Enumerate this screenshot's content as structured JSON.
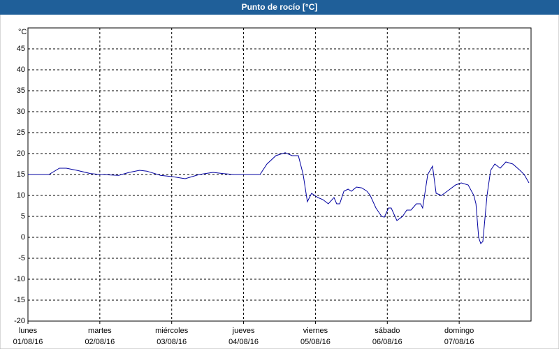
{
  "chart_data": {
    "type": "line",
    "title": "Punto de rocío [°C]",
    "y_unit": "°C",
    "xlim": [
      0,
      168
    ],
    "xticks": [
      {
        "value": 0,
        "label": [
          "lunes",
          "01/08/16"
        ]
      },
      {
        "value": 24,
        "label": [
          "martes",
          "02/08/16"
        ]
      },
      {
        "value": 48,
        "label": [
          "miércoles",
          "03/08/16"
        ]
      },
      {
        "value": 72,
        "label": [
          "jueves",
          "04/08/16"
        ]
      },
      {
        "value": 96,
        "label": [
          "viernes",
          "05/08/16"
        ]
      },
      {
        "value": 120,
        "label": [
          "sábado",
          "06/08/16"
        ]
      },
      {
        "value": 144,
        "label": [
          "domingo",
          "07/08/16"
        ]
      }
    ],
    "ylim": [
      -20,
      50
    ],
    "yticks": [
      -20,
      -15,
      -10,
      -5,
      0,
      5,
      10,
      15,
      20,
      25,
      30,
      35,
      40,
      45
    ],
    "grid": true,
    "x": [
      0,
      7,
      10.5,
      12.8,
      16.3,
      21,
      24.3,
      30.3,
      33.8,
      37.3,
      39.7,
      44.3,
      48.1,
      52.5,
      57.2,
      61.8,
      65.3,
      68.8,
      72.1,
      77.5,
      79.8,
      82.8,
      85.9,
      88.2,
      90.3,
      91.9,
      93.3,
      94.7,
      96.8,
      98.5,
      100.3,
      102.2,
      103.1,
      104.1,
      105.5,
      106.9,
      108,
      109.7,
      111.5,
      113.2,
      114.3,
      116.2,
      118.1,
      119,
      120.4,
      121.3,
      123.2,
      125.1,
      126.5,
      127.9,
      129.7,
      131.1,
      131.8,
      133.5,
      135.1,
      136.3,
      138.1,
      140,
      142.8,
      144.7,
      147,
      148.9,
      149.6,
      150.5,
      151.2,
      151.9,
      153.3,
      154.5,
      155.9,
      157.7,
      159.6,
      161.9,
      164.3,
      165.7,
      167.3
    ],
    "series": [
      {
        "color": "#0000a0",
        "values": [
          15,
          15,
          16.5,
          16.5,
          16,
          15.2,
          15,
          14.8,
          15.5,
          16,
          15.8,
          14.8,
          14.5,
          14,
          15,
          15.5,
          15.2,
          15,
          15,
          15,
          17.5,
          19.5,
          20.2,
          19.5,
          19.5,
          15,
          8.5,
          10.5,
          9.5,
          9,
          8,
          9.5,
          8,
          8,
          11,
          11.5,
          11,
          12,
          11.8,
          11,
          10,
          7,
          5,
          4.8,
          7,
          7,
          4,
          5,
          6.5,
          6.5,
          8,
          8,
          7,
          15,
          17,
          10.5,
          10,
          11,
          12.5,
          13,
          12.5,
          10,
          8,
          0,
          -1.5,
          -1,
          10,
          16,
          17.5,
          16.5,
          18,
          17.5,
          16,
          15,
          13
        ]
      }
    ]
  }
}
